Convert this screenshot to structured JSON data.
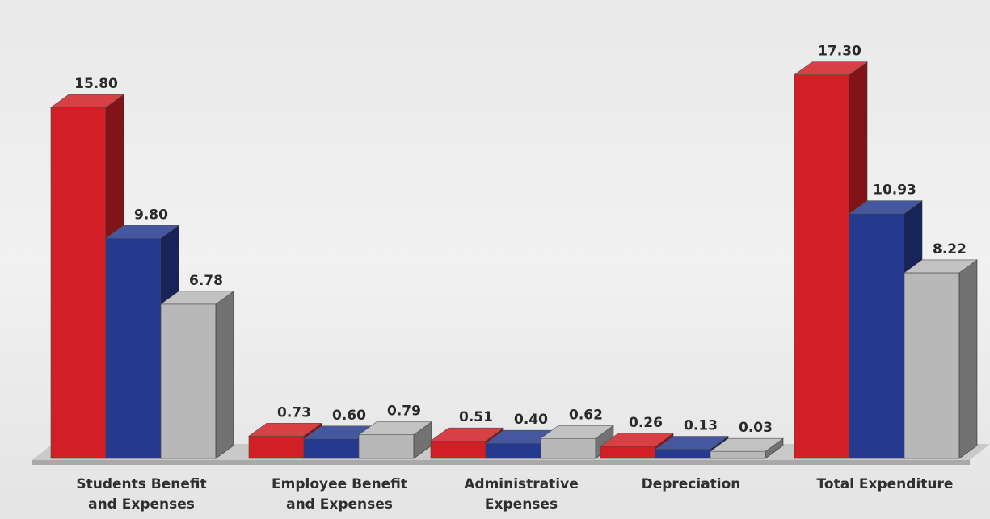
{
  "chart_data": {
    "type": "bar3d",
    "categories": [
      "Students Benefit and Expenses",
      "Employee Benefit and Expenses",
      "Administrative Expenses",
      "Depreciation",
      "Total Expenditure"
    ],
    "series": [
      {
        "color": "#d21f26",
        "values": [
          15.8,
          0.73,
          0.51,
          0.26,
          17.3
        ],
        "value_labels": [
          "15.80",
          "0.73",
          "0.51",
          "0.26",
          "17.30"
        ]
      },
      {
        "color": "#253a8f",
        "values": [
          9.8,
          0.6,
          0.4,
          0.13,
          10.93
        ],
        "value_labels": [
          "9.80",
          "0.60",
          "0.40",
          "0.13",
          "10.93"
        ]
      },
      {
        "color": "#b8b8b8",
        "values": [
          6.78,
          0.79,
          0.62,
          0.03,
          8.22
        ],
        "value_labels": [
          "6.78",
          "0.79",
          "0.62",
          "0.03",
          "8.22"
        ]
      }
    ]
  }
}
